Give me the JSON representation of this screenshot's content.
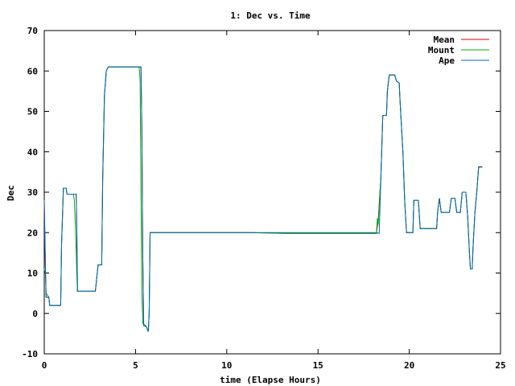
{
  "chart_data": {
    "type": "line",
    "title": "1: Dec vs. Time",
    "xlabel": "time (Elapse Hours)",
    "ylabel": "Dec",
    "xlim": [
      0,
      25
    ],
    "ylim": [
      -10,
      70
    ],
    "xticks": [
      0,
      5,
      10,
      15,
      20,
      25
    ],
    "yticks": [
      -10,
      0,
      10,
      20,
      30,
      40,
      50,
      60,
      70
    ],
    "grid": false,
    "legend_position": "top-right",
    "series": [
      {
        "name": "Mean",
        "color": "#cc0000",
        "points": [
          [
            0.0,
            28
          ],
          [
            0.06,
            12
          ],
          [
            0.1,
            4
          ],
          [
            0.25,
            4
          ],
          [
            0.3,
            2
          ],
          [
            0.9,
            2
          ],
          [
            0.95,
            17
          ],
          [
            1.05,
            31
          ],
          [
            1.2,
            31
          ],
          [
            1.25,
            29.5
          ],
          [
            1.75,
            29.5
          ],
          [
            1.78,
            22
          ],
          [
            1.82,
            5.5
          ],
          [
            2.8,
            5.5
          ],
          [
            2.95,
            12
          ],
          [
            3.15,
            12
          ],
          [
            3.2,
            33
          ],
          [
            3.3,
            54
          ],
          [
            3.4,
            60
          ],
          [
            3.5,
            61
          ],
          [
            5.3,
            61
          ],
          [
            5.35,
            46
          ],
          [
            5.4,
            13
          ],
          [
            5.45,
            -3
          ],
          [
            5.6,
            -3.3
          ],
          [
            5.7,
            -4.5
          ],
          [
            5.75,
            0
          ],
          [
            5.8,
            20
          ],
          [
            11.3,
            20
          ],
          [
            13.2,
            19.8
          ],
          [
            18.2,
            19.8
          ],
          [
            18.3,
            23
          ],
          [
            18.45,
            34
          ],
          [
            18.55,
            49
          ],
          [
            18.75,
            49
          ],
          [
            18.8,
            55
          ],
          [
            18.9,
            59
          ],
          [
            19.2,
            59
          ],
          [
            19.3,
            57.5
          ],
          [
            19.45,
            57
          ],
          [
            19.5,
            52
          ],
          [
            19.65,
            40
          ],
          [
            19.75,
            28
          ],
          [
            19.85,
            20
          ],
          [
            20.2,
            20
          ],
          [
            20.25,
            28
          ],
          [
            20.5,
            28
          ],
          [
            20.6,
            21
          ],
          [
            21.0,
            21
          ],
          [
            21.5,
            21
          ],
          [
            21.55,
            25
          ],
          [
            21.65,
            28.5
          ],
          [
            21.75,
            25
          ],
          [
            22.2,
            25
          ],
          [
            22.3,
            28.5
          ],
          [
            22.5,
            28.5
          ],
          [
            22.6,
            25
          ],
          [
            22.8,
            25
          ],
          [
            22.9,
            30
          ],
          [
            23.1,
            30
          ],
          [
            23.2,
            24
          ],
          [
            23.3,
            15
          ],
          [
            23.35,
            11
          ],
          [
            23.45,
            11
          ],
          [
            23.5,
            17
          ],
          [
            23.6,
            25
          ],
          [
            23.7,
            30
          ],
          [
            23.8,
            36.3
          ],
          [
            24.0,
            36.3
          ]
        ]
      },
      {
        "name": "Mount",
        "color": "#00aa00",
        "points": [
          [
            0.0,
            11
          ],
          [
            0.06,
            10
          ],
          [
            0.1,
            5
          ],
          [
            0.25,
            4
          ],
          [
            0.3,
            2
          ],
          [
            0.9,
            2
          ],
          [
            0.95,
            17
          ],
          [
            1.05,
            31
          ],
          [
            1.2,
            31
          ],
          [
            1.25,
            29.5
          ],
          [
            1.6,
            29.5
          ],
          [
            1.65,
            28
          ],
          [
            1.72,
            20
          ],
          [
            1.78,
            10
          ],
          [
            1.82,
            5.5
          ],
          [
            2.8,
            5.5
          ],
          [
            2.95,
            12
          ],
          [
            3.15,
            12
          ],
          [
            3.2,
            33
          ],
          [
            3.3,
            54
          ],
          [
            3.4,
            60
          ],
          [
            3.5,
            61
          ],
          [
            5.2,
            61
          ],
          [
            5.25,
            58
          ],
          [
            5.3,
            30
          ],
          [
            5.35,
            5
          ],
          [
            5.4,
            -2.5
          ],
          [
            5.55,
            -3
          ],
          [
            5.6,
            -3.3
          ],
          [
            5.7,
            -4.5
          ],
          [
            5.75,
            0
          ],
          [
            5.8,
            20
          ],
          [
            11.3,
            20
          ],
          [
            13.2,
            19.8
          ],
          [
            18.2,
            19.8
          ],
          [
            18.25,
            23.5
          ],
          [
            18.3,
            22
          ],
          [
            18.45,
            34
          ],
          [
            18.55,
            49
          ],
          [
            18.75,
            49
          ],
          [
            18.8,
            55
          ],
          [
            18.9,
            59
          ],
          [
            19.2,
            59
          ],
          [
            19.3,
            57.5
          ],
          [
            19.45,
            57
          ],
          [
            19.5,
            52
          ],
          [
            19.65,
            40
          ],
          [
            19.75,
            28
          ],
          [
            19.85,
            20
          ],
          [
            20.2,
            20
          ],
          [
            20.25,
            28
          ],
          [
            20.5,
            28
          ],
          [
            20.6,
            21
          ],
          [
            21.0,
            21
          ],
          [
            21.5,
            21
          ],
          [
            21.55,
            25
          ],
          [
            21.65,
            28.5
          ],
          [
            21.75,
            25
          ],
          [
            22.2,
            25
          ],
          [
            22.3,
            28.5
          ],
          [
            22.5,
            28.5
          ],
          [
            22.6,
            25
          ],
          [
            22.8,
            25
          ],
          [
            22.9,
            30
          ],
          [
            23.1,
            30
          ],
          [
            23.2,
            24
          ],
          [
            23.3,
            15
          ],
          [
            23.35,
            11
          ],
          [
            23.45,
            11
          ],
          [
            23.5,
            17
          ],
          [
            23.6,
            25
          ],
          [
            23.7,
            30
          ],
          [
            23.8,
            36.2
          ],
          [
            24.0,
            36.2
          ]
        ]
      },
      {
        "name": "Ape",
        "color": "#0066bb",
        "points": [
          [
            0.0,
            28
          ],
          [
            0.06,
            12
          ],
          [
            0.1,
            4
          ],
          [
            0.25,
            4
          ],
          [
            0.3,
            2
          ],
          [
            0.9,
            2
          ],
          [
            0.95,
            17
          ],
          [
            1.05,
            31
          ],
          [
            1.2,
            31
          ],
          [
            1.25,
            29.5
          ],
          [
            1.75,
            29.5
          ],
          [
            1.78,
            22
          ],
          [
            1.82,
            5.5
          ],
          [
            2.8,
            5.5
          ],
          [
            2.95,
            12
          ],
          [
            3.15,
            12
          ],
          [
            3.2,
            33
          ],
          [
            3.3,
            54
          ],
          [
            3.4,
            60
          ],
          [
            3.5,
            61
          ],
          [
            5.3,
            61
          ],
          [
            5.35,
            46
          ],
          [
            5.4,
            13
          ],
          [
            5.45,
            -3
          ],
          [
            5.6,
            -3.3
          ],
          [
            5.7,
            -4.5
          ],
          [
            5.75,
            0
          ],
          [
            5.8,
            20
          ],
          [
            11.3,
            20
          ],
          [
            11.3,
            20
          ],
          [
            18.2,
            20
          ],
          [
            18.35,
            19.8
          ],
          [
            18.45,
            34
          ],
          [
            18.55,
            49
          ],
          [
            18.75,
            49
          ],
          [
            18.8,
            55
          ],
          [
            18.9,
            59
          ],
          [
            19.2,
            59
          ],
          [
            19.3,
            57.5
          ],
          [
            19.45,
            57
          ],
          [
            19.5,
            52
          ],
          [
            19.65,
            40
          ],
          [
            19.75,
            28
          ],
          [
            19.85,
            20
          ],
          [
            20.2,
            20
          ],
          [
            20.25,
            28
          ],
          [
            20.5,
            28
          ],
          [
            20.6,
            21
          ],
          [
            21.0,
            21
          ],
          [
            21.5,
            21
          ],
          [
            21.55,
            25
          ],
          [
            21.65,
            28.5
          ],
          [
            21.75,
            25
          ],
          [
            22.2,
            25
          ],
          [
            22.3,
            28.5
          ],
          [
            22.5,
            28.5
          ],
          [
            22.6,
            25
          ],
          [
            22.8,
            25
          ],
          [
            22.9,
            30
          ],
          [
            23.1,
            30
          ],
          [
            23.2,
            24
          ],
          [
            23.3,
            15
          ],
          [
            23.35,
            11
          ],
          [
            23.45,
            11
          ],
          [
            23.5,
            17
          ],
          [
            23.6,
            25
          ],
          [
            23.7,
            30
          ],
          [
            23.8,
            36.2
          ],
          [
            24.0,
            36.2
          ]
        ]
      }
    ]
  }
}
